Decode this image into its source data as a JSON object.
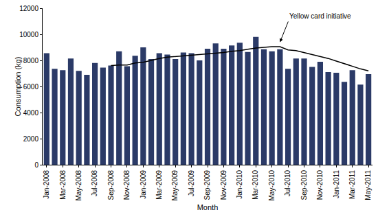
{
  "chart_data": {
    "type": "bar",
    "categories": [
      "Jan-2008",
      null,
      "Mar-2008",
      null,
      "May-2008",
      null,
      "Jul-2008",
      null,
      "Sep-2008",
      null,
      "Nov-2008",
      null,
      "Jan-2009",
      null,
      "Mar-2009",
      null,
      "May-2009",
      null,
      "Jul-2009",
      null,
      "Sep-2009",
      null,
      "Nov-2009",
      null,
      "Jan-2010",
      null,
      "Mar-2010",
      null,
      "May-2010",
      null,
      "Jul-2010",
      null,
      "Sep-2010",
      null,
      "Nov-2010",
      null,
      "Jan-2011",
      null,
      "Mar-2011",
      null,
      "May-2011"
    ],
    "series": [
      {
        "type": "bar",
        "color": "#2b3a67",
        "values": [
          8550,
          7350,
          7250,
          8150,
          7200,
          6900,
          7800,
          7450,
          7600,
          8700,
          7550,
          8350,
          9000,
          8100,
          8550,
          8450,
          8100,
          8600,
          8550,
          8000,
          8900,
          9300,
          8900,
          9150,
          9350,
          8650,
          9800,
          8850,
          8700,
          8850,
          7350,
          8150,
          8150,
          7500,
          7900,
          7100,
          7050,
          6350,
          7250,
          6150,
          6950
        ]
      },
      {
        "type": "line",
        "color": "#000000",
        "values": [
          null,
          null,
          null,
          null,
          null,
          null,
          null,
          null,
          7600,
          7650,
          7650,
          7800,
          7850,
          8000,
          8150,
          8250,
          8300,
          8350,
          8400,
          8450,
          8500,
          8550,
          8600,
          8700,
          8750,
          8850,
          8950,
          9000,
          9050,
          9050,
          8800,
          8750,
          8600,
          8450,
          8300,
          8150,
          7950,
          7750,
          7550,
          7350,
          7200
        ]
      }
    ],
    "x_label": "Month",
    "y_label": "Consumption (kg)",
    "ylim": [
      0,
      12000
    ],
    "yticks": [
      0,
      2000,
      4000,
      6000,
      8000,
      10000,
      12000
    ],
    "grid": false,
    "annotations": [
      {
        "text": "Yellow card initiative",
        "x": 29,
        "y": 9400
      }
    ]
  }
}
